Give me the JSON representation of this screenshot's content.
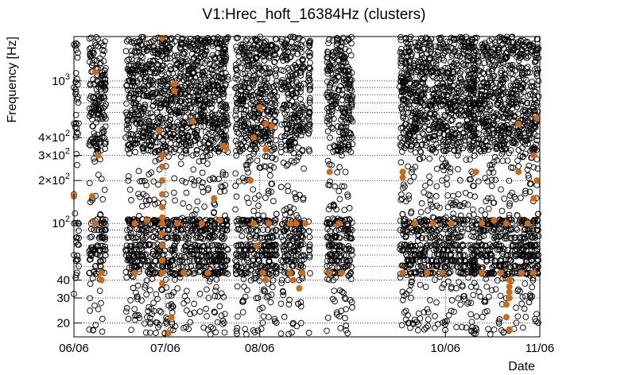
{
  "chart_data": {
    "type": "scatter",
    "title": "V1:Hrec_hoft_16384Hz (clusters)",
    "xlabel": "Date",
    "ylabel": "Frequency [Hz]",
    "xscale": "time",
    "yscale": "log",
    "xlim": [
      "2010-06-06",
      "2010-11-06"
    ],
    "ylim": [
      16,
      2048
    ],
    "grid": "dotted",
    "x_ticks": [
      {
        "value": "2010-06-06",
        "label": "06/06"
      },
      {
        "value": "2010-07-06",
        "label": "07/06"
      },
      {
        "value": "2010-08-06",
        "label": "08/06"
      },
      {
        "value": "2010-10-06",
        "label": "10/06"
      },
      {
        "value": "2010-11-06",
        "label": "11/06"
      }
    ],
    "y_ticks": [
      {
        "value": 20,
        "label": "20"
      },
      {
        "value": 30,
        "label": "30"
      },
      {
        "value": 40,
        "label": "40"
      },
      {
        "value": 100,
        "label": "10",
        "exp": "2"
      },
      {
        "value": 200,
        "label": "2×10",
        "exp": "2"
      },
      {
        "value": 300,
        "label": "3×10",
        "exp": "2"
      },
      {
        "value": 400,
        "label": "4×10",
        "exp": "2"
      },
      {
        "value": 1000,
        "label": "10",
        "exp": "3"
      }
    ],
    "y_grid_values": [
      20,
      30,
      40,
      50,
      60,
      70,
      80,
      90,
      100,
      200,
      300,
      400,
      500,
      600,
      700,
      800,
      900,
      1000
    ],
    "data_segments": [
      [
        "2010-06-06",
        "2010-06-07"
      ],
      [
        "2010-06-11",
        "2010-06-16"
      ],
      [
        "2010-06-23",
        "2010-07-26"
      ],
      [
        "2010-07-29",
        "2010-08-11"
      ],
      [
        "2010-08-13",
        "2010-08-20"
      ],
      [
        "2010-08-22",
        "2010-08-22"
      ],
      [
        "2010-08-28",
        "2010-09-05"
      ],
      [
        "2010-09-21",
        "2010-10-15"
      ],
      [
        "2010-10-15",
        "2010-11-05"
      ]
    ],
    "series": [
      {
        "marker": "open-circle",
        "color": "#000000",
        "points": [
          [
            "2010-06-06",
            1800
          ],
          [
            "2010-06-06",
            900
          ],
          [
            "2010-06-06",
            500
          ],
          [
            "2010-06-06",
            160
          ],
          [
            "2010-06-06",
            100
          ],
          [
            "2010-06-06",
            60
          ],
          [
            "2010-06-06",
            32
          ],
          [
            "2010-06-12",
            1500
          ],
          [
            "2010-06-13",
            700
          ],
          [
            "2010-06-14",
            300
          ],
          [
            "2010-06-12",
            150
          ],
          [
            "2010-06-15",
            100
          ],
          [
            "2010-06-13",
            50
          ],
          [
            "2010-06-14",
            25
          ],
          [
            "2010-06-28",
            1800
          ],
          [
            "2010-07-02",
            1200
          ],
          [
            "2010-07-08",
            800
          ],
          [
            "2010-07-12",
            500
          ],
          [
            "2010-07-15",
            300
          ],
          [
            "2010-07-18",
            180
          ],
          [
            "2010-07-22",
            120
          ],
          [
            "2010-07-05",
            60
          ],
          [
            "2010-07-10",
            35
          ],
          [
            "2010-06-30",
            22
          ],
          [
            "2010-07-20",
            18
          ],
          [
            "2010-08-01",
            1600
          ],
          [
            "2010-08-05",
            700
          ],
          [
            "2010-08-08",
            250
          ],
          [
            "2010-08-03",
            100
          ],
          [
            "2010-08-10",
            50
          ],
          [
            "2010-08-06",
            25
          ],
          [
            "2010-08-15",
            1400
          ],
          [
            "2010-08-18",
            450
          ],
          [
            "2010-08-16",
            120
          ],
          [
            "2010-08-19",
            40
          ],
          [
            "2010-08-17",
            20
          ],
          [
            "2010-08-30",
            1500
          ],
          [
            "2010-09-02",
            300
          ],
          [
            "2010-09-01",
            90
          ],
          [
            "2010-09-03",
            30
          ],
          [
            "2010-09-24",
            1600
          ],
          [
            "2010-10-02",
            800
          ],
          [
            "2010-10-10",
            300
          ],
          [
            "2010-09-28",
            120
          ],
          [
            "2010-10-06",
            60
          ],
          [
            "2010-09-30",
            25
          ],
          [
            "2010-10-18",
            1800
          ],
          [
            "2010-10-25",
            900
          ],
          [
            "2010-11-01",
            400
          ],
          [
            "2010-10-20",
            150
          ],
          [
            "2010-10-28",
            70
          ],
          [
            "2010-11-03",
            30
          ],
          [
            "2010-10-22",
            18
          ]
        ]
      },
      {
        "marker": "filled-circle",
        "color": "#cc6a1a",
        "points": [
          [
            "2010-06-06",
            155
          ],
          [
            "2010-06-13",
            1150
          ],
          [
            "2010-06-14",
            300
          ],
          [
            "2010-06-12",
            155
          ],
          [
            "2010-06-13",
            100
          ],
          [
            "2010-06-15",
            45
          ],
          [
            "2010-06-15",
            40
          ],
          [
            "2010-07-05",
            2000
          ],
          [
            "2010-07-09",
            950
          ],
          [
            "2010-07-09",
            850
          ],
          [
            "2010-07-15",
            520
          ],
          [
            "2010-07-04",
            450
          ],
          [
            "2010-07-05",
            300
          ],
          [
            "2010-07-05",
            250
          ],
          [
            "2010-07-05",
            200
          ],
          [
            "2010-07-05",
            160
          ],
          [
            "2010-07-05",
            130
          ],
          [
            "2010-07-05",
            110
          ],
          [
            "2010-07-05",
            100
          ],
          [
            "2010-07-05",
            85
          ],
          [
            "2010-07-05",
            70
          ],
          [
            "2010-07-05",
            55
          ],
          [
            "2010-07-05",
            45
          ],
          [
            "2010-07-05",
            38
          ],
          [
            "2010-06-26",
            100
          ],
          [
            "2010-06-30",
            105
          ],
          [
            "2010-07-10",
            100
          ],
          [
            "2010-07-18",
            100
          ],
          [
            "2010-07-24",
            105
          ],
          [
            "2010-06-26",
            45
          ],
          [
            "2010-07-12",
            45
          ],
          [
            "2010-07-20",
            45
          ],
          [
            "2010-07-08",
            22
          ],
          [
            "2010-07-07",
            17
          ],
          [
            "2010-07-22",
            150
          ],
          [
            "2010-07-25",
            350
          ],
          [
            "2010-07-26",
            340
          ],
          [
            "2010-08-06",
            650
          ],
          [
            "2010-08-08",
            500
          ],
          [
            "2010-08-10",
            480
          ],
          [
            "2010-08-04",
            400
          ],
          [
            "2010-08-08",
            330
          ],
          [
            "2010-08-03",
            200
          ],
          [
            "2010-08-04",
            100
          ],
          [
            "2010-08-09",
            100
          ],
          [
            "2010-08-05",
            70
          ],
          [
            "2010-08-07",
            45
          ],
          [
            "2010-08-08",
            40
          ],
          [
            "2010-08-16",
            100
          ],
          [
            "2010-08-18",
            100
          ],
          [
            "2010-08-21",
            100
          ],
          [
            "2010-08-16",
            45
          ],
          [
            "2010-08-20",
            45
          ],
          [
            "2010-08-17",
            40
          ],
          [
            "2010-08-19",
            35
          ],
          [
            "2010-08-29",
            230
          ],
          [
            "2010-09-01",
            100
          ],
          [
            "2010-08-29",
            45
          ],
          [
            "2010-09-02",
            45
          ],
          [
            "2010-09-22",
            230
          ],
          [
            "2010-09-22",
            210
          ],
          [
            "2010-09-26",
            100
          ],
          [
            "2010-10-02",
            100
          ],
          [
            "2010-10-08",
            100
          ],
          [
            "2010-09-22",
            45
          ],
          [
            "2010-09-30",
            45
          ],
          [
            "2010-10-05",
            45
          ],
          [
            "2010-10-16",
            230
          ],
          [
            "2010-10-18",
            100
          ],
          [
            "2010-10-22",
            105
          ],
          [
            "2010-10-26",
            100
          ],
          [
            "2010-11-02",
            100
          ],
          [
            "2010-10-30",
            500
          ],
          [
            "2010-10-18",
            45
          ],
          [
            "2010-10-24",
            45
          ],
          [
            "2010-10-31",
            45
          ],
          [
            "2010-11-04",
            45
          ],
          [
            "2010-10-27",
            40
          ],
          [
            "2010-10-27",
            36
          ],
          [
            "2010-10-27",
            33
          ],
          [
            "2010-10-27",
            30
          ],
          [
            "2010-10-26",
            27
          ],
          [
            "2010-10-26",
            22
          ],
          [
            "2010-10-27",
            18
          ],
          [
            "2010-11-05",
            550
          ],
          [
            "2010-11-04",
            300
          ],
          [
            "2010-11-05",
            200
          ],
          [
            "2010-11-04",
            150
          ],
          [
            "2010-10-30",
            230
          ]
        ]
      }
    ]
  }
}
